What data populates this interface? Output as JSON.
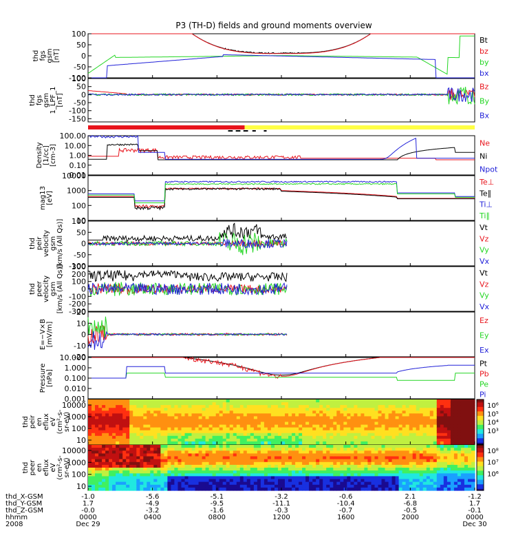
{
  "title": "P3 (TH-D) fields and ground moments overview",
  "colors": {
    "black": "#000000",
    "red": "#e8141c",
    "green": "#22d622",
    "blue": "#2020d8",
    "yellow": "#ffff44",
    "orange": "#ff8800"
  },
  "chart_data": [
    {
      "id": "fgs",
      "type": "line",
      "ylabel_lines": [
        "thd",
        "fgs",
        "gsm",
        "[nT]"
      ],
      "yticks": [
        "100",
        "50",
        "0",
        "-50",
        "-100"
      ],
      "yticks_v": [
        100,
        50,
        0,
        -50,
        -100
      ],
      "ylim": [
        -100,
        100
      ],
      "series": [
        {
          "name": "Bt",
          "color": "black"
        },
        {
          "name": "bz",
          "color": "red"
        },
        {
          "name": "by",
          "color": "green"
        },
        {
          "name": "bx",
          "color": "blue"
        }
      ]
    },
    {
      "id": "fgs-lpf",
      "type": "line",
      "ylabel_lines": [
        "thd",
        "fgs",
        "gsm",
        "1_LPF_1",
        "[nT]"
      ],
      "yticks": [
        "100",
        "50",
        "0",
        "-50",
        "-100",
        "-150"
      ],
      "yticks_v": [
        100,
        50,
        0,
        -50,
        -100,
        -150
      ],
      "ylim": [
        -170,
        100
      ],
      "series": [
        {
          "name": "Bz",
          "color": "red"
        },
        {
          "name": "By",
          "color": "green"
        },
        {
          "name": "Bx",
          "color": "blue"
        }
      ]
    },
    {
      "id": "density",
      "type": "line",
      "yscale": "log",
      "ylabel_lines": [
        "Density",
        "[1/cc]",
        "[cm-3]"
      ],
      "yticks": [
        "100.00",
        "10.00",
        "1.00",
        "0.10",
        "0.01"
      ],
      "yticks_v": [
        100,
        10,
        1,
        0.1,
        0.01
      ],
      "ylim": [
        0.01,
        100
      ],
      "series": [
        {
          "name": "Ne",
          "color": "red"
        },
        {
          "name": "Ni",
          "color": "black"
        },
        {
          "name": "Npot",
          "color": "blue"
        }
      ]
    },
    {
      "id": "temperature",
      "type": "line",
      "yscale": "log",
      "ylabel_lines": [
        "mag13",
        "[eV]"
      ],
      "yticks": [
        "10000",
        "1000",
        "100",
        "10"
      ],
      "yticks_v": [
        10000,
        1000,
        100,
        10
      ],
      "ylim": [
        10,
        10000
      ],
      "series": [
        {
          "name": "Te⊥",
          "color": "red"
        },
        {
          "name": "Te∥",
          "color": "black"
        },
        {
          "name": "Ti⊥",
          "color": "blue"
        },
        {
          "name": "Ti∥",
          "color": "green"
        }
      ]
    },
    {
      "id": "peir-velocity",
      "type": "line",
      "ylabel_lines": [
        "thd",
        "peir",
        "velocity",
        "gsm",
        "[km/s (All Qs)]"
      ],
      "yticks": [
        "100",
        "50",
        "0",
        "-50",
        "-100"
      ],
      "yticks_v": [
        100,
        50,
        0,
        -50,
        -100
      ],
      "ylim": [
        -100,
        100
      ],
      "series": [
        {
          "name": "Vt",
          "color": "black"
        },
        {
          "name": "Vz",
          "color": "red"
        },
        {
          "name": "Vy",
          "color": "green"
        },
        {
          "name": "Vx",
          "color": "blue"
        }
      ]
    },
    {
      "id": "peer-velocity",
      "type": "line",
      "ylabel_lines": [
        "thd",
        "peer",
        "velocity",
        "gsm",
        "[km/s (All Qs)]"
      ],
      "yticks": [
        "300",
        "200",
        "100",
        "0",
        "-100",
        "-200",
        "-300"
      ],
      "yticks_v": [
        300,
        200,
        100,
        0,
        -100,
        -200,
        -300
      ],
      "ylim": [
        -300,
        300
      ],
      "series": [
        {
          "name": "Vt",
          "color": "black"
        },
        {
          "name": "Vz",
          "color": "red"
        },
        {
          "name": "Vy",
          "color": "green"
        },
        {
          "name": "Vx",
          "color": "blue"
        }
      ]
    },
    {
      "id": "efield",
      "type": "line",
      "ylabel_lines": [
        "E=−V×B",
        "[mV/m]"
      ],
      "yticks": [
        "20",
        "10",
        "0",
        "-10",
        "-20"
      ],
      "yticks_v": [
        20,
        10,
        0,
        -10,
        -20
      ],
      "ylim": [
        -20,
        20
      ],
      "series": [
        {
          "name": "Ez",
          "color": "red"
        },
        {
          "name": "Ey",
          "color": "green"
        },
        {
          "name": "Ex",
          "color": "blue"
        }
      ]
    },
    {
      "id": "pressure",
      "type": "line",
      "yscale": "log",
      "ylabel_lines": [
        "Pressure",
        "[nPa]"
      ],
      "yticks": [
        "10.000",
        "1.000",
        "0.100",
        "0.010",
        "0.001"
      ],
      "yticks_v": [
        10,
        1,
        0.1,
        0.01,
        0.001
      ],
      "ylim": [
        0.001,
        10
      ],
      "series": [
        {
          "name": "Pt",
          "color": "black"
        },
        {
          "name": "Pb",
          "color": "red"
        },
        {
          "name": "Pe",
          "color": "green"
        },
        {
          "name": "Pi",
          "color": "blue"
        }
      ]
    },
    {
      "id": "peir-spectrogram",
      "type": "heatmap",
      "ylabel_lines": [
        "thd",
        "peir",
        "en",
        "eflux",
        "eV",
        "(cm²-s-",
        "sr-eV)"
      ],
      "yticks": [
        "10000",
        "1000",
        "100",
        "10"
      ],
      "colorbar_ticks": [
        "10⁶",
        "10⁵",
        "10⁴",
        "10³"
      ]
    },
    {
      "id": "peer-spectrogram",
      "type": "heatmap",
      "ylabel_lines": [
        "thd",
        "peer",
        "en",
        "eflux",
        "eV",
        "(cm²-s-",
        "sr-eV)"
      ],
      "yticks": [
        "10000",
        "1000",
        "100",
        "10"
      ],
      "colorbar_ticks": [
        "10⁸",
        "10⁷",
        "10⁶"
      ]
    }
  ],
  "mode_bar": {
    "segments": [
      {
        "from": 0.0,
        "to": 0.405,
        "color": "red"
      },
      {
        "from": 0.405,
        "to": 1.0,
        "color": "yellow"
      }
    ]
  },
  "xaxis": {
    "row_labels": [
      "thd_X-GSM",
      "thd_Y-GSM",
      "thd_Z-GSM",
      "hhmm",
      "2008"
    ],
    "columns": [
      {
        "x": "-1.0",
        "y": "1.7",
        "z": "-0.0",
        "t": "0000",
        "d": "Dec 29"
      },
      {
        "x": "-5.6",
        "y": "-4.9",
        "z": "-3.2",
        "t": "0400",
        "d": ""
      },
      {
        "x": "-5.1",
        "y": "-9.5",
        "z": "-1.6",
        "t": "0800",
        "d": ""
      },
      {
        "x": "-3.2",
        "y": "-11.1",
        "z": "-0.3",
        "t": "1200",
        "d": ""
      },
      {
        "x": "-0.6",
        "y": "-10.4",
        "z": "-0.7",
        "t": "1600",
        "d": ""
      },
      {
        "x": "2.1",
        "y": "-6.8",
        "z": "-0.5",
        "t": "2000",
        "d": ""
      },
      {
        "x": "-1.2",
        "y": "1.7",
        "z": "-0.1",
        "t": "0000",
        "d": "Dec 30"
      }
    ]
  }
}
